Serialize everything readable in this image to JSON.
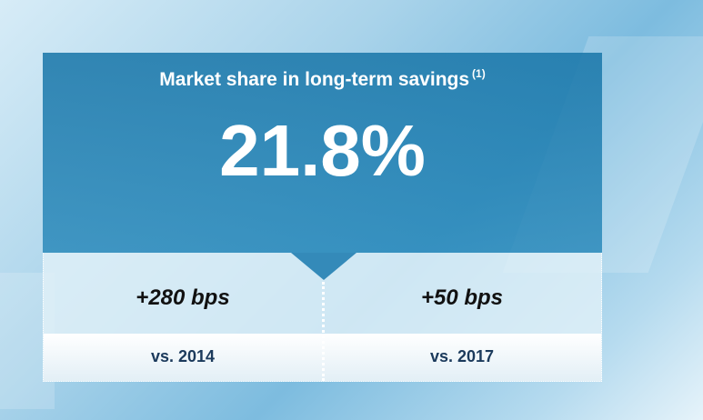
{
  "header": {
    "title": "Market share in long-term savings",
    "note": "(1)"
  },
  "headline": {
    "value": "21.8%"
  },
  "comparisons": [
    {
      "change": "+280 bps",
      "period": "vs. 2014"
    },
    {
      "change": "+50 bps",
      "period": "vs. 2017"
    }
  ]
}
